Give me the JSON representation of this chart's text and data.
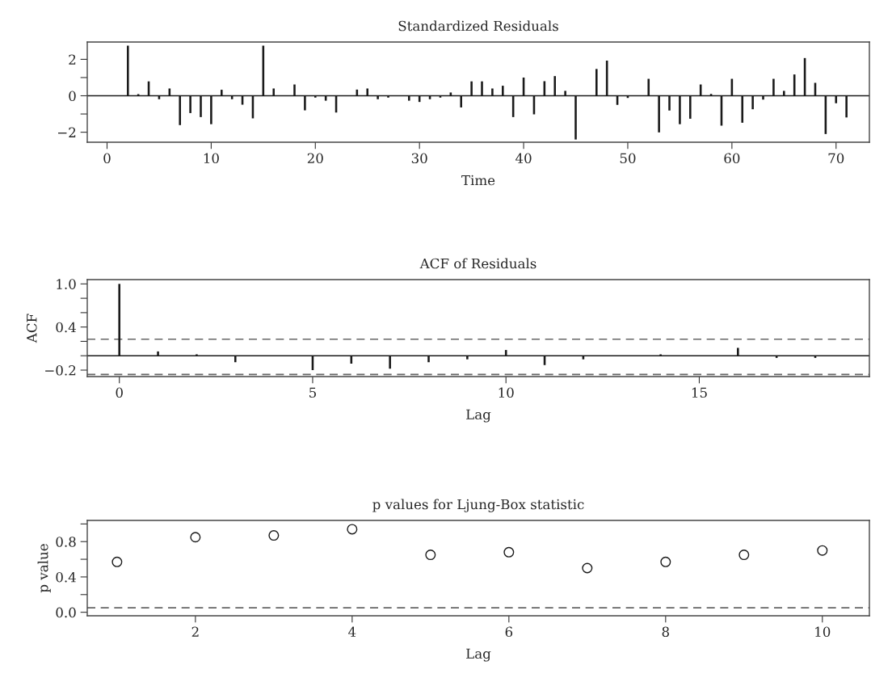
{
  "chart_data": [
    {
      "type": "bar",
      "title": "Standardized Residuals",
      "xlabel": "Time",
      "x": [
        2,
        3,
        4,
        5,
        6,
        7,
        8,
        9,
        10,
        11,
        12,
        13,
        14,
        15,
        16,
        18,
        19,
        20,
        21,
        22,
        24,
        25,
        26,
        27,
        29,
        30,
        31,
        32,
        33,
        34,
        35,
        36,
        37,
        38,
        39,
        40,
        41,
        42,
        43,
        44,
        45,
        47,
        48,
        49,
        50,
        52,
        53,
        54,
        55,
        56,
        57,
        58,
        59,
        60,
        61,
        62,
        63,
        64,
        65,
        66,
        67,
        68,
        69,
        70,
        71
      ],
      "values": [
        2.75,
        0.09,
        0.79,
        -0.19,
        0.4,
        -1.61,
        -0.95,
        -1.17,
        -1.56,
        0.33,
        -0.19,
        -0.49,
        -1.24,
        2.75,
        0.4,
        0.62,
        -0.8,
        -0.1,
        -0.27,
        -0.92,
        0.34,
        0.4,
        -0.19,
        -0.1,
        -0.27,
        -0.34,
        -0.19,
        -0.1,
        0.18,
        -0.64,
        0.79,
        0.79,
        0.4,
        0.55,
        -1.17,
        1.0,
        -1.02,
        0.8,
        1.08,
        0.27,
        -2.4,
        1.47,
        1.93,
        -0.5,
        -0.12,
        0.93,
        -2.01,
        -0.81,
        -1.56,
        -1.26,
        0.62,
        0.1,
        -1.64,
        0.93,
        -1.48,
        -0.74,
        -0.21,
        0.93,
        0.27,
        1.17,
        2.07,
        0.71,
        -2.1,
        -0.41,
        -1.19
      ],
      "color": "#1a1a1a",
      "xlim": [
        -1.9,
        73.2
      ],
      "xticks": [
        0,
        10,
        20,
        30,
        40,
        50,
        60,
        70
      ],
      "ylim": [
        -2.55,
        2.95
      ],
      "yticks": [
        {
          "value": -2,
          "label": "−2"
        },
        {
          "value": -1,
          "label": null
        },
        0,
        {
          "value": 1,
          "label": null
        },
        2
      ],
      "ref_lines": [
        {
          "axis": "y",
          "value": 0,
          "color": "#1a1a1a",
          "line_style": "solid"
        }
      ],
      "grid": false,
      "legend": false
    },
    {
      "type": "bar",
      "title": "ACF of Residuals",
      "xlabel": "Lag",
      "ylabel": "ACF",
      "x": [
        0,
        1,
        2,
        3,
        5,
        6,
        7,
        8,
        9,
        10,
        11,
        12,
        14,
        16,
        17,
        18
      ],
      "values": [
        1.0,
        0.06,
        0.02,
        -0.09,
        -0.2,
        -0.11,
        -0.18,
        -0.09,
        -0.05,
        0.08,
        -0.13,
        -0.05,
        0.02,
        0.11,
        -0.03,
        -0.03
      ],
      "color": "#1a1a1a",
      "xlim": [
        -0.83,
        19.4
      ],
      "xticks": [
        0,
        5,
        10,
        15
      ],
      "ylim": [
        -0.29,
        1.06
      ],
      "yticks": [
        {
          "value": -0.2,
          "label": "−0.2"
        },
        {
          "value": 0.0,
          "label": null
        },
        {
          "value": 0.2,
          "label": null
        },
        {
          "value": 0.4,
          "label": "0.4"
        },
        {
          "value": 0.6,
          "label": null
        },
        {
          "value": 0.8,
          "label": null
        },
        {
          "value": 1.0,
          "label": "1.0"
        }
      ],
      "ref_lines": [
        {
          "axis": "y",
          "value": 0,
          "color": "#1a1a1a",
          "line_style": "solid"
        },
        {
          "axis": "y",
          "value": 0.23,
          "color": "#666666",
          "line_style": "dashed"
        },
        {
          "axis": "y",
          "value": -0.26,
          "color": "#666666",
          "line_style": "dashed"
        }
      ],
      "grid": false,
      "legend": false
    },
    {
      "type": "scatter",
      "title": "p values for Ljung-Box statistic",
      "xlabel": "Lag",
      "ylabel": "p value",
      "x": [
        1,
        2,
        3,
        4,
        5,
        6,
        7,
        8,
        9,
        10
      ],
      "values": [
        0.57,
        0.85,
        0.87,
        0.94,
        0.65,
        0.68,
        0.5,
        0.57,
        0.65,
        0.7
      ],
      "color": "#1a1a1a",
      "marker": "circle",
      "xlim": [
        0.62,
        10.6
      ],
      "xticks": [
        2,
        4,
        6,
        8,
        10
      ],
      "ylim": [
        -0.04,
        1.04
      ],
      "yticks": [
        {
          "value": 0.0,
          "label": "0.0"
        },
        {
          "value": 0.2,
          "label": null
        },
        {
          "value": 0.4,
          "label": "0.4"
        },
        {
          "value": 0.6,
          "label": null
        },
        {
          "value": 0.8,
          "label": "0.8"
        },
        {
          "value": 1.0,
          "label": null
        }
      ],
      "ref_lines": [
        {
          "axis": "y",
          "value": 0.05,
          "color": "#666666",
          "line_style": "dashed"
        }
      ],
      "grid": false,
      "legend": false
    }
  ]
}
